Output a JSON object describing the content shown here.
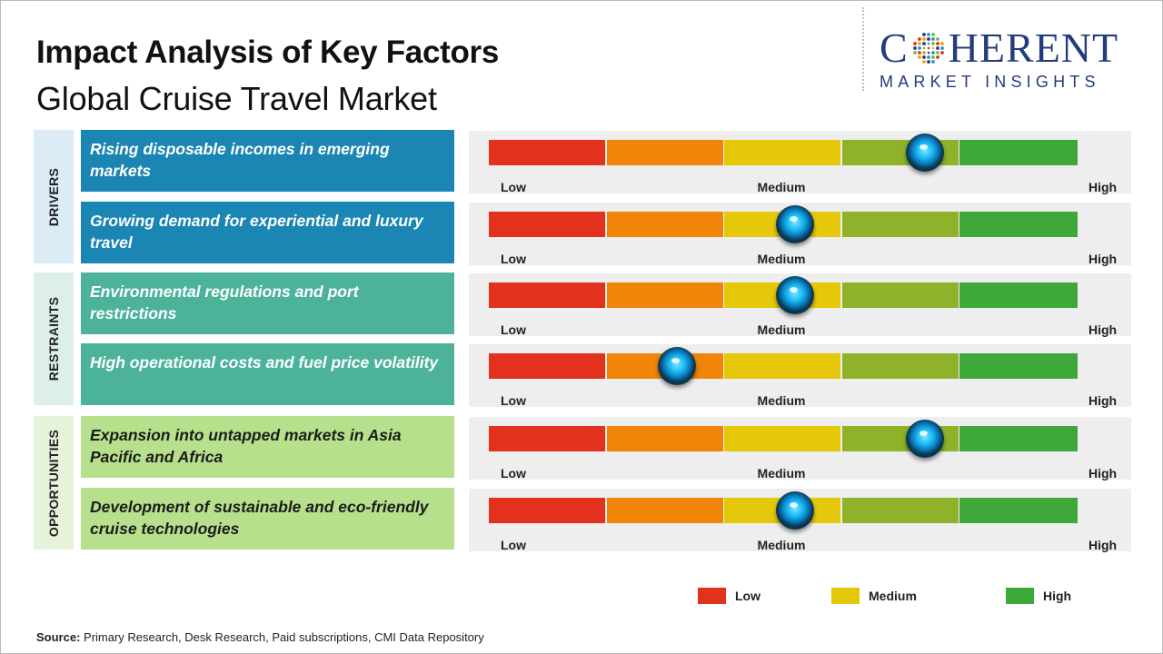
{
  "header": {
    "title": "Impact Analysis of Key Factors",
    "subtitle": "Global Cruise Travel Market"
  },
  "logo": {
    "line1_left": "C",
    "line1_right": "HERENT",
    "line2": "MARKET INSIGHTS",
    "brand_color": "#233c7c"
  },
  "categories": [
    {
      "label": "DRIVERS",
      "color": "#dcecf7"
    },
    {
      "label": "RESTRAINTS",
      "color": "#dcefe8"
    },
    {
      "label": "OPPORTUNITIES",
      "color": "#e6f2d9"
    }
  ],
  "scale": {
    "low_label": "Low",
    "medium_label": "Medium",
    "high_label": "High",
    "segment_colors": [
      "#e2321e",
      "#f0850a",
      "#e6c80b",
      "#8fb22a",
      "#3fa83b"
    ]
  },
  "chart_data": {
    "type": "table",
    "scale_min": 0,
    "scale_max": 5,
    "rows": [
      {
        "category": "DRIVERS",
        "factor": "Rising disposable incomes in emerging markets",
        "value": 3.7,
        "color": "#1b86b3",
        "text_color": "#ffffff"
      },
      {
        "category": "DRIVERS",
        "factor": "Growing demand for experiential and luxury travel",
        "value": 2.6,
        "color": "#1b86b3",
        "text_color": "#ffffff"
      },
      {
        "category": "RESTRAINTS",
        "factor": "Environmental regulations and port restrictions",
        "value": 2.6,
        "color": "#4cb39a",
        "text_color": "#ffffff"
      },
      {
        "category": "RESTRAINTS",
        "factor": "High operational costs and fuel price volatility",
        "value": 1.6,
        "color": "#4cb39a",
        "text_color": "#ffffff"
      },
      {
        "category": "OPPORTUNITIES",
        "factor": "Expansion into untapped markets in Asia Pacific and Africa",
        "value": 3.7,
        "color": "#b6e08c",
        "text_color": "#1c1c1c"
      },
      {
        "category": "OPPORTUNITIES",
        "factor": "Development of sustainable and eco-friendly cruise technologies",
        "value": 2.6,
        "color": "#b6e08c",
        "text_color": "#1c1c1c"
      }
    ]
  },
  "legend": [
    {
      "label": "Low",
      "color": "#e2321e"
    },
    {
      "label": "Medium",
      "color": "#e6c80b"
    },
    {
      "label": "High",
      "color": "#3fa83b"
    }
  ],
  "source": {
    "prefix": "Source:",
    "text": "Primary Research, Desk Research, Paid subscriptions, CMI Data Repository"
  }
}
